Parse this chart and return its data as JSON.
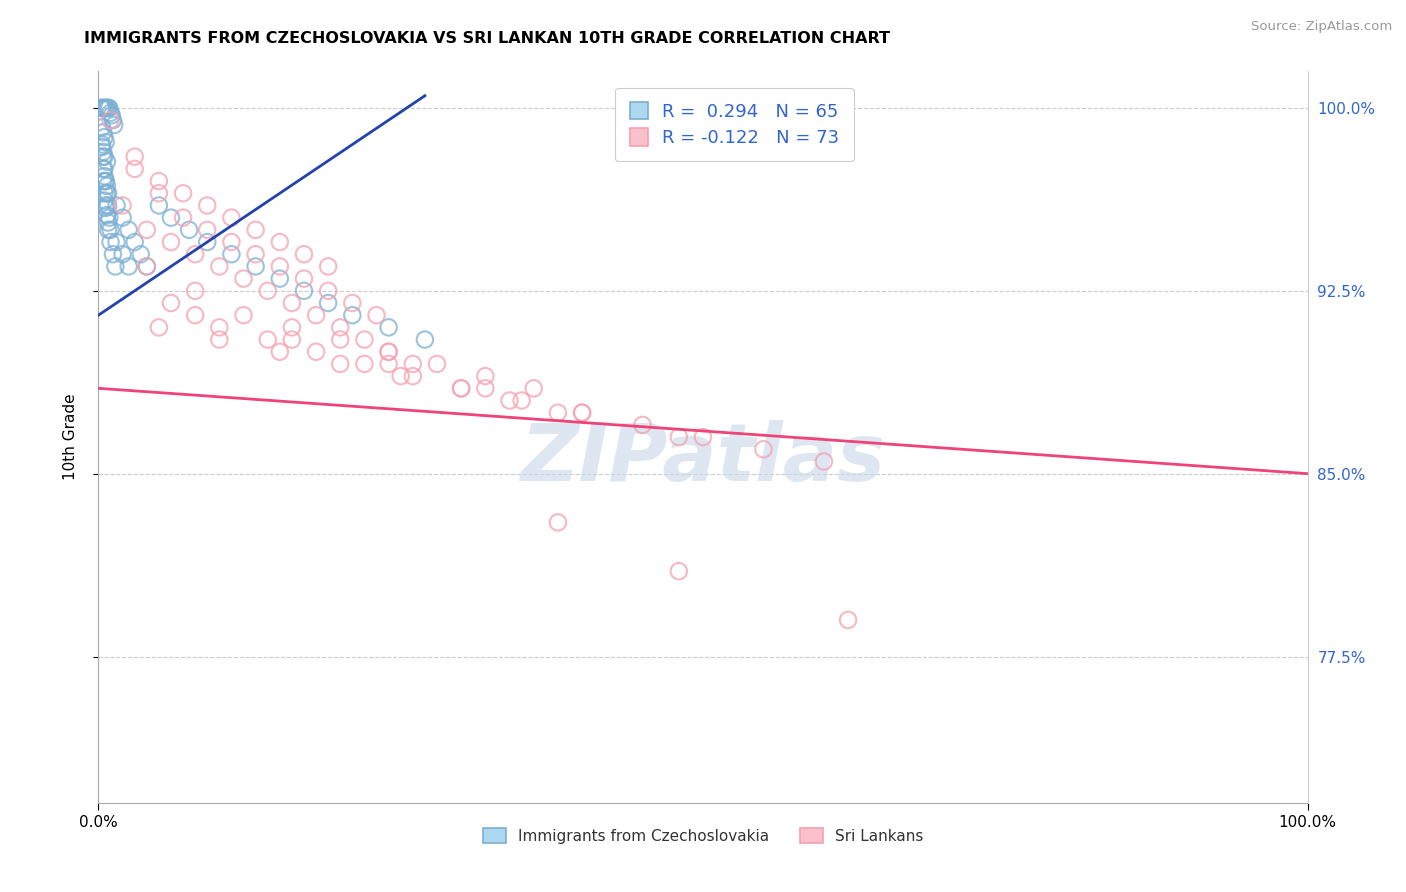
{
  "title": "IMMIGRANTS FROM CZECHOSLOVAKIA VS SRI LANKAN 10TH GRADE CORRELATION CHART",
  "source": "Source: ZipAtlas.com",
  "ylabel": "10th Grade",
  "x_min": 0.0,
  "x_max": 100.0,
  "y_min": 71.5,
  "y_max": 101.5,
  "y_ticks": [
    77.5,
    85.0,
    92.5,
    100.0
  ],
  "y_tick_labels": [
    "77.5%",
    "85.0%",
    "92.5%",
    "100.0%"
  ],
  "x_tick_labels": [
    "0.0%",
    "100.0%"
  ],
  "legend_blue_r": "R =  0.294",
  "legend_blue_n": "N = 65",
  "legend_pink_r": "R = -0.122",
  "legend_pink_n": "N = 73",
  "blue_color": "#7BAFD4",
  "pink_color": "#F4A0B0",
  "blue_line_color": "#2244AA",
  "pink_line_color": "#EE4477",
  "legend_text_color": "#3366CC",
  "watermark": "ZIPatlas",
  "watermark_color": "#C8D8E8",
  "blue_scatter_x": [
    0.2,
    0.3,
    0.4,
    0.5,
    0.6,
    0.7,
    0.8,
    0.9,
    1.0,
    1.1,
    1.2,
    1.3,
    0.3,
    0.4,
    0.5,
    0.6,
    0.3,
    0.4,
    0.5,
    0.7,
    0.4,
    0.5,
    0.6,
    0.7,
    0.8,
    0.5,
    0.6,
    0.7,
    0.8,
    1.5,
    2.0,
    2.5,
    3.0,
    3.5,
    4.0,
    5.0,
    6.0,
    7.5,
    9.0,
    11.0,
    13.0,
    15.0,
    17.0,
    19.0,
    21.0,
    24.0,
    27.0,
    0.3,
    0.4,
    0.5,
    0.6,
    0.7,
    0.8,
    0.9,
    1.0,
    1.5,
    2.0,
    2.5,
    0.4,
    0.5,
    0.6,
    0.8,
    1.0,
    1.2,
    1.4
  ],
  "blue_scatter_y": [
    100.0,
    100.0,
    100.0,
    100.0,
    100.0,
    100.0,
    100.0,
    100.0,
    99.8,
    99.7,
    99.5,
    99.3,
    99.2,
    99.0,
    98.8,
    98.6,
    98.4,
    98.2,
    98.0,
    97.8,
    97.5,
    97.2,
    97.0,
    96.8,
    96.5,
    96.2,
    95.9,
    95.6,
    95.3,
    96.0,
    95.5,
    95.0,
    94.5,
    94.0,
    93.5,
    96.0,
    95.5,
    95.0,
    94.5,
    94.0,
    93.5,
    93.0,
    92.5,
    92.0,
    91.5,
    91.0,
    90.5,
    98.5,
    98.0,
    97.5,
    97.0,
    96.5,
    96.0,
    95.5,
    95.0,
    94.5,
    94.0,
    93.5,
    97.0,
    96.5,
    96.0,
    95.0,
    94.5,
    94.0,
    93.5
  ],
  "pink_scatter_x": [
    1.0,
    3.0,
    5.0,
    7.0,
    9.0,
    11.0,
    13.0,
    15.0,
    17.0,
    19.0,
    3.0,
    5.0,
    7.0,
    9.0,
    11.0,
    13.0,
    15.0,
    17.0,
    19.0,
    21.0,
    23.0,
    2.0,
    4.0,
    6.0,
    8.0,
    10.0,
    12.0,
    14.0,
    16.0,
    18.0,
    20.0,
    22.0,
    24.0,
    26.0,
    4.0,
    8.0,
    12.0,
    16.0,
    20.0,
    24.0,
    28.0,
    32.0,
    36.0,
    6.0,
    10.0,
    14.0,
    18.0,
    22.0,
    26.0,
    30.0,
    34.0,
    38.0,
    8.0,
    16.0,
    24.0,
    32.0,
    40.0,
    48.0,
    10.0,
    20.0,
    30.0,
    40.0,
    50.0,
    60.0,
    45.0,
    55.0,
    35.0,
    25.0,
    15.0,
    5.0,
    38.0,
    48.0,
    62.0
  ],
  "pink_scatter_y": [
    99.5,
    98.0,
    97.0,
    96.5,
    96.0,
    95.5,
    95.0,
    94.5,
    94.0,
    93.5,
    97.5,
    96.5,
    95.5,
    95.0,
    94.5,
    94.0,
    93.5,
    93.0,
    92.5,
    92.0,
    91.5,
    96.0,
    95.0,
    94.5,
    94.0,
    93.5,
    93.0,
    92.5,
    92.0,
    91.5,
    91.0,
    90.5,
    90.0,
    89.5,
    93.5,
    92.5,
    91.5,
    91.0,
    90.5,
    90.0,
    89.5,
    89.0,
    88.5,
    92.0,
    91.0,
    90.5,
    90.0,
    89.5,
    89.0,
    88.5,
    88.0,
    87.5,
    91.5,
    90.5,
    89.5,
    88.5,
    87.5,
    86.5,
    90.5,
    89.5,
    88.5,
    87.5,
    86.5,
    85.5,
    87.0,
    86.0,
    88.0,
    89.0,
    90.0,
    91.0,
    83.0,
    81.0,
    79.0
  ],
  "blue_line_x": [
    0.0,
    27.0
  ],
  "blue_line_y": [
    91.5,
    100.5
  ],
  "pink_line_x": [
    0.0,
    100.0
  ],
  "pink_line_y": [
    88.5,
    85.0
  ],
  "figsize": [
    14.06,
    8.92
  ],
  "dpi": 100
}
